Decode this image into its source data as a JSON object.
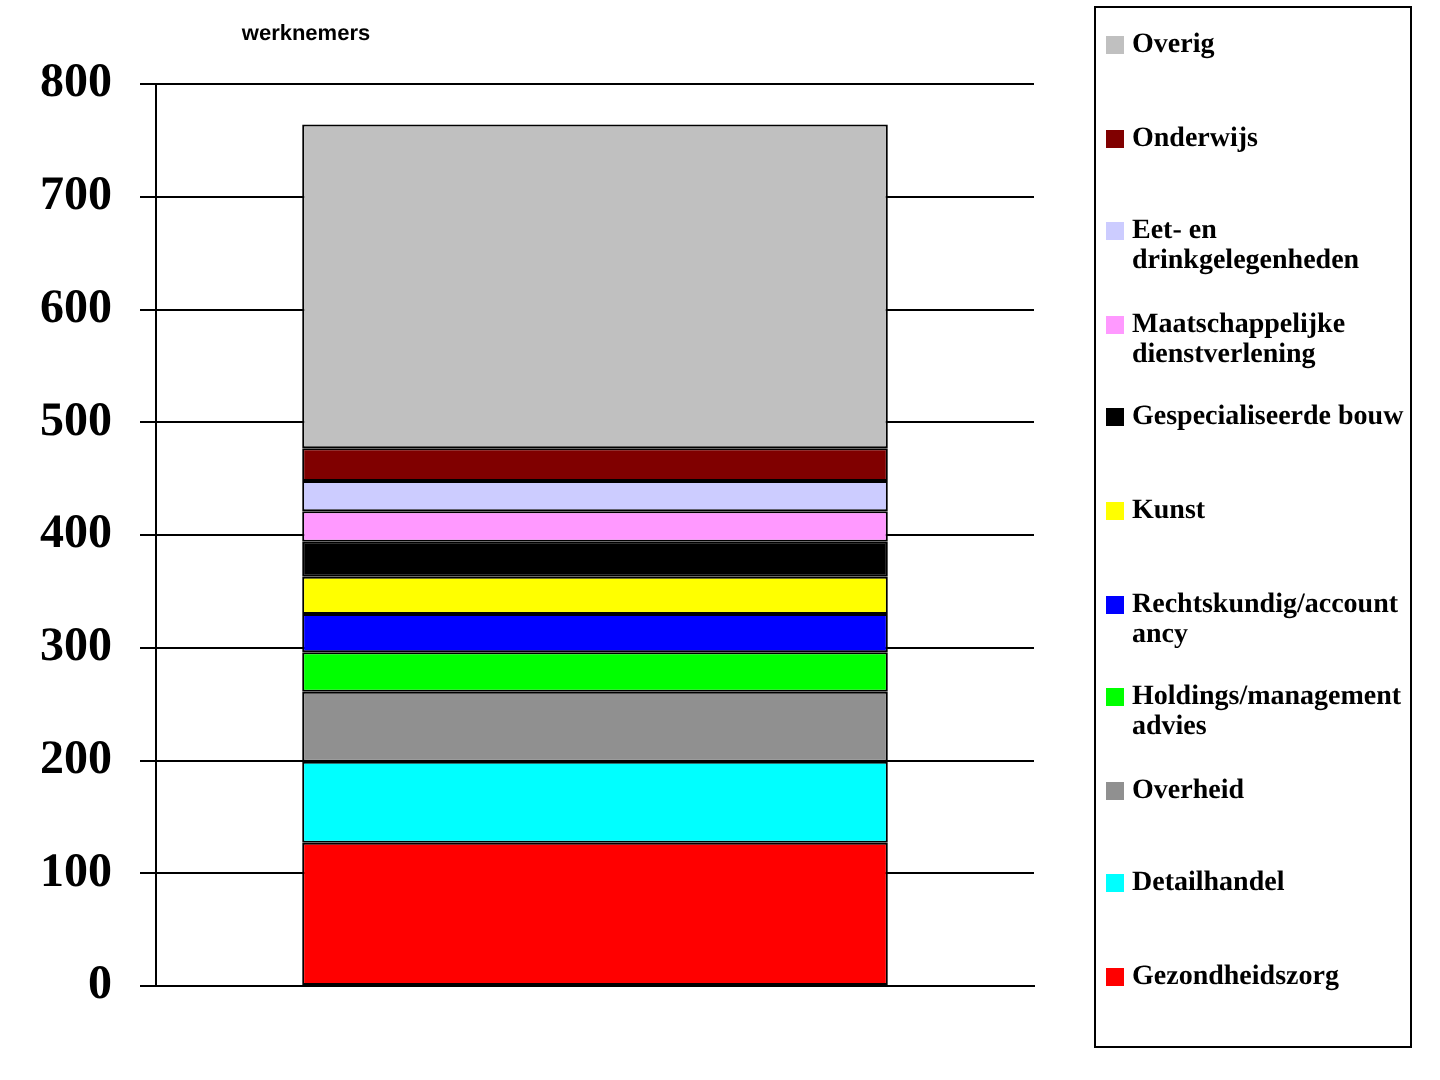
{
  "chart_data": {
    "type": "bar",
    "stacked": true,
    "ylabel": "werknemers",
    "categories": [
      null
    ],
    "series": [
      {
        "name": "Gezondheidszorg",
        "color": "#ff0000",
        "values": [
          127
        ]
      },
      {
        "name": "Detailhandel",
        "color": "#00ffff",
        "values": [
          72
        ]
      },
      {
        "name": "Overheid",
        "color": "#909090",
        "values": [
          62
        ]
      },
      {
        "name": "Holdings/management advies",
        "color": "#00ff00",
        "values": [
          35
        ]
      },
      {
        "name": "Rechtskundig/accountancy",
        "color": "#0000ff",
        "values": [
          34
        ]
      },
      {
        "name": "Kunst",
        "color": "#ffff00",
        "values": [
          33
        ]
      },
      {
        "name": "Gespecialiseerde bouw",
        "color": "#000000",
        "values": [
          31
        ]
      },
      {
        "name": "Maatschappelijke dienstverlening",
        "color": "#ff99ff",
        "values": [
          27
        ]
      },
      {
        "name": "Eet- en drinkgelegenheden",
        "color": "#ccccff",
        "values": [
          27
        ]
      },
      {
        "name": "Onderwijs",
        "color": "#800000",
        "values": [
          29
        ]
      },
      {
        "name": "Overig",
        "color": "#c0c0c0",
        "values": [
          287
        ]
      }
    ],
    "ylim": [
      0,
      800
    ],
    "yticks": [
      0,
      100,
      200,
      300,
      400,
      500,
      600,
      700,
      800
    ],
    "grid": "y",
    "legend": "right"
  }
}
